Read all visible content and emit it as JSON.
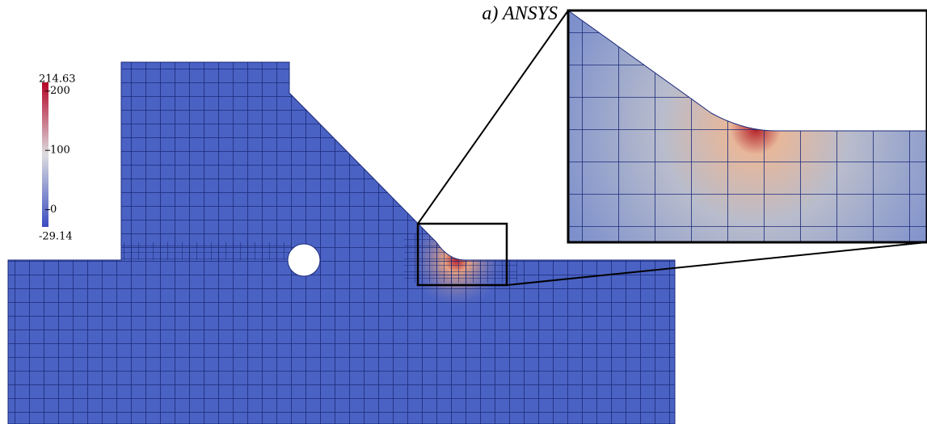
{
  "figure": {
    "title": "a) ANSYS"
  },
  "colorbar": {
    "min": -29.14,
    "max": 214.63,
    "ticks": [
      200,
      100,
      0
    ]
  }
}
